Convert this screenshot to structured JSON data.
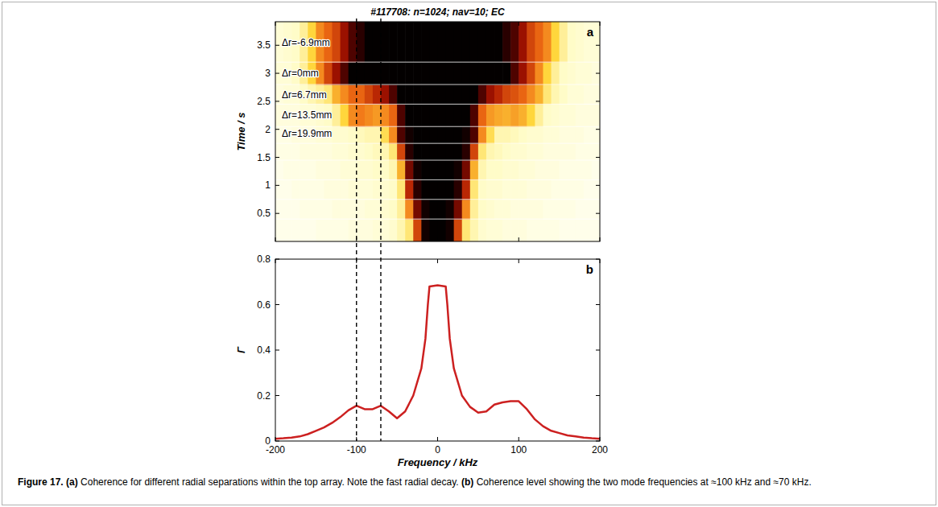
{
  "chart_data": [
    {
      "type": "heatmap",
      "title": "#117708: n=1024; nav=10; EC",
      "panel_label": "a",
      "ylabel": "Time / s",
      "xlim": [
        -200,
        200
      ],
      "ylim": [
        0,
        3.92
      ],
      "xticks": [
        -200,
        -100,
        0,
        100,
        200
      ],
      "yticks": [
        0.5,
        1,
        1.5,
        2,
        2.5,
        3,
        3.5
      ],
      "tick_labels": "y",
      "zlim": [
        0,
        0.8
      ],
      "x_edges": [
        -200,
        -190,
        -180,
        -170,
        -160,
        -150,
        -140,
        -130,
        -120,
        -110,
        -100,
        -90,
        -80,
        -70,
        -60,
        -50,
        -40,
        -30,
        -20,
        -10,
        0,
        10,
        20,
        30,
        40,
        50,
        60,
        70,
        80,
        90,
        100,
        110,
        120,
        130,
        140,
        150,
        160,
        170,
        180,
        190,
        200
      ],
      "y_edges": [
        0,
        0.4,
        0.75,
        1.1,
        1.45,
        1.75,
        2.05,
        2.45,
        2.8,
        3.2,
        3.92
      ],
      "cells": [
        [
          0.03,
          0.03,
          0.03,
          0.03,
          0.03,
          0.04,
          0.04,
          0.04,
          0.04,
          0.05,
          0.05,
          0.05,
          0.06,
          0.06,
          0.07,
          0.1,
          0.15,
          0.4,
          0.68,
          0.7,
          0.7,
          0.68,
          0.4,
          0.15,
          0.1,
          0.07,
          0.06,
          0.06,
          0.05,
          0.05,
          0.05,
          0.04,
          0.04,
          0.04,
          0.04,
          0.03,
          0.03,
          0.03,
          0.03,
          0.03
        ],
        [
          0.03,
          0.03,
          0.03,
          0.04,
          0.04,
          0.04,
          0.04,
          0.05,
          0.05,
          0.05,
          0.05,
          0.06,
          0.06,
          0.07,
          0.08,
          0.12,
          0.3,
          0.55,
          0.68,
          0.7,
          0.7,
          0.68,
          0.55,
          0.3,
          0.12,
          0.08,
          0.07,
          0.06,
          0.06,
          0.05,
          0.05,
          0.05,
          0.05,
          0.04,
          0.04,
          0.04,
          0.04,
          0.03,
          0.03,
          0.03
        ],
        [
          0.03,
          0.03,
          0.04,
          0.04,
          0.04,
          0.04,
          0.05,
          0.05,
          0.05,
          0.06,
          0.06,
          0.06,
          0.07,
          0.07,
          0.08,
          0.15,
          0.45,
          0.65,
          0.7,
          0.7,
          0.7,
          0.7,
          0.65,
          0.45,
          0.15,
          0.08,
          0.07,
          0.07,
          0.06,
          0.06,
          0.06,
          0.05,
          0.05,
          0.05,
          0.04,
          0.04,
          0.04,
          0.04,
          0.03,
          0.03
        ],
        [
          0.03,
          0.04,
          0.04,
          0.04,
          0.04,
          0.05,
          0.05,
          0.05,
          0.06,
          0.06,
          0.07,
          0.07,
          0.08,
          0.08,
          0.1,
          0.25,
          0.55,
          0.68,
          0.7,
          0.7,
          0.7,
          0.7,
          0.68,
          0.55,
          0.25,
          0.1,
          0.08,
          0.08,
          0.07,
          0.07,
          0.06,
          0.06,
          0.05,
          0.05,
          0.05,
          0.04,
          0.04,
          0.04,
          0.04,
          0.03
        ],
        [
          0.04,
          0.04,
          0.04,
          0.05,
          0.05,
          0.05,
          0.05,
          0.06,
          0.06,
          0.07,
          0.07,
          0.08,
          0.09,
          0.1,
          0.15,
          0.4,
          0.65,
          0.7,
          0.7,
          0.7,
          0.7,
          0.7,
          0.7,
          0.65,
          0.4,
          0.15,
          0.1,
          0.09,
          0.08,
          0.07,
          0.07,
          0.06,
          0.06,
          0.05,
          0.05,
          0.05,
          0.05,
          0.04,
          0.04,
          0.04
        ],
        [
          0.04,
          0.04,
          0.05,
          0.05,
          0.05,
          0.06,
          0.06,
          0.07,
          0.07,
          0.08,
          0.09,
          0.1,
          0.1,
          0.18,
          0.3,
          0.6,
          0.68,
          0.7,
          0.7,
          0.7,
          0.7,
          0.7,
          0.7,
          0.68,
          0.6,
          0.3,
          0.18,
          0.1,
          0.1,
          0.09,
          0.08,
          0.07,
          0.07,
          0.06,
          0.06,
          0.05,
          0.05,
          0.05,
          0.04,
          0.04
        ],
        [
          0.05,
          0.05,
          0.05,
          0.06,
          0.06,
          0.07,
          0.08,
          0.12,
          0.2,
          0.3,
          0.32,
          0.3,
          0.28,
          0.3,
          0.35,
          0.6,
          0.7,
          0.7,
          0.7,
          0.7,
          0.7,
          0.7,
          0.7,
          0.7,
          0.6,
          0.35,
          0.28,
          0.26,
          0.25,
          0.27,
          0.25,
          0.2,
          0.12,
          0.08,
          0.07,
          0.06,
          0.06,
          0.05,
          0.05,
          0.05
        ],
        [
          0.05,
          0.06,
          0.06,
          0.08,
          0.1,
          0.12,
          0.15,
          0.25,
          0.3,
          0.35,
          0.35,
          0.4,
          0.45,
          0.5,
          0.6,
          0.7,
          0.7,
          0.7,
          0.7,
          0.7,
          0.7,
          0.7,
          0.7,
          0.7,
          0.7,
          0.6,
          0.5,
          0.45,
          0.4,
          0.38,
          0.35,
          0.3,
          0.25,
          0.15,
          0.1,
          0.08,
          0.06,
          0.06,
          0.05,
          0.05
        ],
        [
          0.06,
          0.06,
          0.08,
          0.12,
          0.2,
          0.3,
          0.4,
          0.5,
          0.6,
          0.7,
          0.7,
          0.7,
          0.7,
          0.7,
          0.7,
          0.7,
          0.7,
          0.7,
          0.7,
          0.7,
          0.7,
          0.7,
          0.7,
          0.7,
          0.7,
          0.7,
          0.7,
          0.7,
          0.7,
          0.6,
          0.5,
          0.4,
          0.3,
          0.2,
          0.12,
          0.08,
          0.07,
          0.06,
          0.06,
          0.05
        ],
        [
          0.06,
          0.07,
          0.08,
          0.12,
          0.2,
          0.3,
          0.35,
          0.4,
          0.5,
          0.6,
          0.65,
          0.7,
          0.7,
          0.7,
          0.7,
          0.7,
          0.7,
          0.7,
          0.7,
          0.7,
          0.7,
          0.7,
          0.7,
          0.7,
          0.7,
          0.7,
          0.7,
          0.7,
          0.65,
          0.6,
          0.5,
          0.4,
          0.35,
          0.3,
          0.2,
          0.12,
          0.08,
          0.07,
          0.06,
          0.06
        ]
      ],
      "annotations": [
        {
          "text": "Δr=-6.9mm",
          "y": 3.55
        },
        {
          "text": "Δr=0mm",
          "y": 3.0
        },
        {
          "text": "Δr=6.7mm",
          "y": 2.62
        },
        {
          "text": "Δr=13.5mm",
          "y": 2.25
        },
        {
          "text": "Δr=19.9mm",
          "y": 1.92
        }
      ]
    },
    {
      "type": "line",
      "panel_label": "b",
      "xlabel": "Frequency / kHz",
      "ylabel": "Γ",
      "color": "#cc2020",
      "xlim": [
        -200,
        200
      ],
      "ylim": [
        0,
        0.8
      ],
      "xticks": [
        -200,
        -100,
        0,
        100,
        200
      ],
      "yticks": [
        0,
        0.2,
        0.4,
        0.6,
        0.8
      ],
      "x": [
        -200,
        -190,
        -180,
        -170,
        -160,
        -150,
        -140,
        -130,
        -120,
        -110,
        -100,
        -90,
        -80,
        -70,
        -60,
        -50,
        -40,
        -30,
        -20,
        -15,
        -12,
        -10,
        0,
        10,
        12,
        15,
        20,
        30,
        40,
        50,
        60,
        70,
        80,
        90,
        100,
        110,
        120,
        130,
        140,
        150,
        160,
        170,
        180,
        190,
        200
      ],
      "values": [
        0.01,
        0.012,
        0.015,
        0.02,
        0.03,
        0.045,
        0.06,
        0.08,
        0.105,
        0.135,
        0.155,
        0.14,
        0.14,
        0.155,
        0.13,
        0.1,
        0.13,
        0.2,
        0.32,
        0.45,
        0.6,
        0.68,
        0.685,
        0.68,
        0.6,
        0.45,
        0.32,
        0.2,
        0.15,
        0.125,
        0.13,
        0.16,
        0.17,
        0.175,
        0.175,
        0.14,
        0.095,
        0.065,
        0.045,
        0.035,
        0.025,
        0.02,
        0.015,
        0.012,
        0.01
      ],
      "mode_lines": [
        -100,
        -70
      ],
      "line_style": "solid"
    }
  ],
  "caption": {
    "label": "Figure 17.",
    "items": [
      {
        "tag": "(a)",
        "text": "Coherence for different radial separations within the top array. Note the fast radial decay."
      },
      {
        "tag": "(b)",
        "text": "Coherence level showing the two mode frequencies at ≈100 kHz and ≈70 kHz."
      }
    ]
  }
}
